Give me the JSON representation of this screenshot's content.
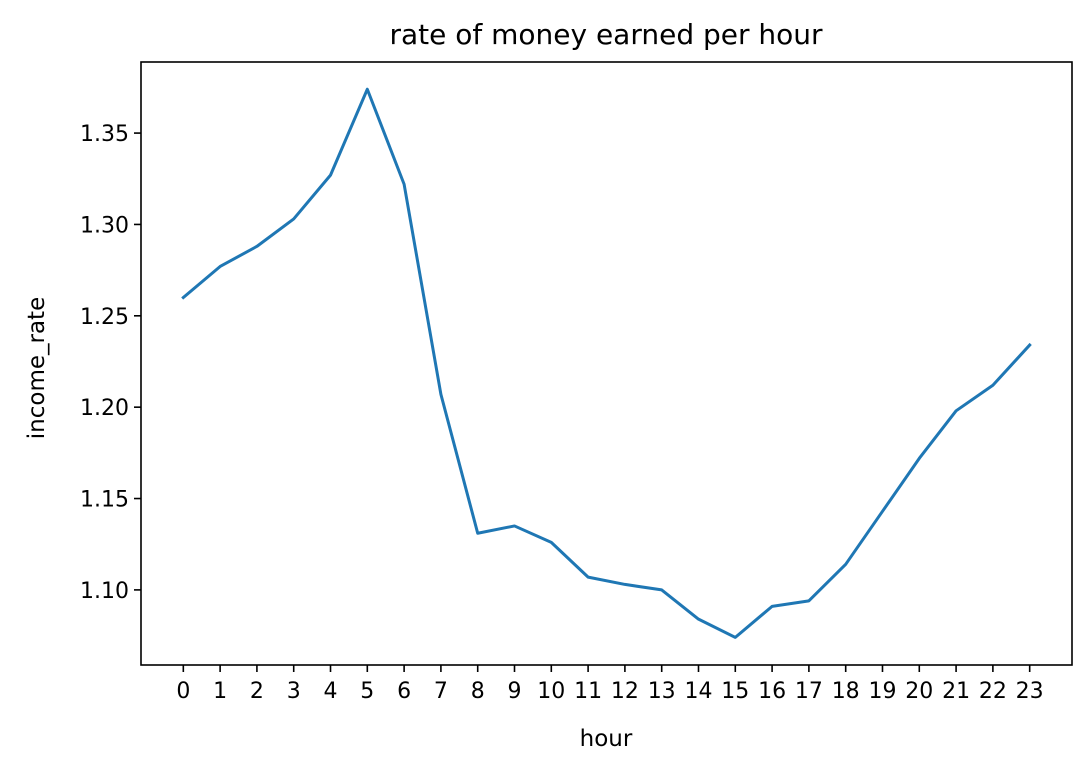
{
  "chart_data": {
    "type": "line",
    "title": "rate of money earned per hour",
    "xlabel": "hour",
    "ylabel": "income_rate",
    "x": [
      0,
      1,
      2,
      3,
      4,
      5,
      6,
      7,
      8,
      9,
      10,
      11,
      12,
      13,
      14,
      15,
      16,
      17,
      18,
      19,
      20,
      21,
      22,
      23
    ],
    "xticks": [
      "0",
      "1",
      "2",
      "3",
      "4",
      "5",
      "6",
      "7",
      "8",
      "9",
      "10",
      "11",
      "12",
      "13",
      "14",
      "15",
      "16",
      "17",
      "18",
      "19",
      "20",
      "21",
      "22",
      "23"
    ],
    "series": [
      {
        "values": [
          1.26,
          1.277,
          1.288,
          1.303,
          1.327,
          1.374,
          1.322,
          1.207,
          1.131,
          1.135,
          1.126,
          1.107,
          1.103,
          1.1,
          1.084,
          1.074,
          1.091,
          1.094,
          1.114,
          1.143,
          1.172,
          1.198,
          1.212,
          1.234
        ],
        "color": "#1f77b4"
      }
    ],
    "yticks": [
      "1.10",
      "1.15",
      "1.20",
      "1.25",
      "1.30",
      "1.35"
    ],
    "xlim": [
      -1.15,
      24.15
    ],
    "ylim": [
      1.0589,
      1.3889
    ],
    "grid": false,
    "legend": "none"
  }
}
